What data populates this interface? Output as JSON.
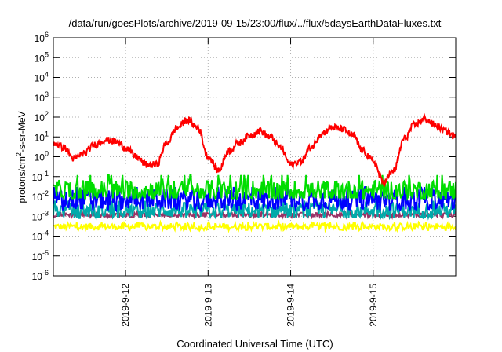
{
  "chart_data": {
    "type": "line",
    "title": "/data/run/goesPlots/archive/2019-09-15/23:00/flux/../flux/5daysEarthDataFluxes.txt",
    "xlabel": "Coordinated Universal Time (UTC)",
    "ylabel": "protons/cm2-s-sr-MeV",
    "ylabel_parts": {
      "pre": "protons/cm",
      "sup": "2",
      "post": "-s-sr-MeV"
    },
    "yscale": "log",
    "xlim": [
      "2019-09-11T03:00",
      "2019-09-16T00:00"
    ],
    "ylim": [
      1e-06,
      1000000.0
    ],
    "x_ticks": [
      "2019-9-12",
      "2019-9-13",
      "2019-9-14",
      "2019-9-15"
    ],
    "y_tick_exponents": [
      -6,
      -5,
      -4,
      -3,
      -2,
      -1,
      0,
      1,
      2,
      3,
      4,
      5,
      6
    ],
    "grid": true,
    "series": [
      {
        "color": "#ff0000",
        "x": [
          "2019-09-11T03:00",
          "2019-09-11T06:00",
          "2019-09-11T09:00",
          "2019-09-11T12:00",
          "2019-09-11T15:00",
          "2019-09-11T18:00",
          "2019-09-11T21:00",
          "2019-09-12T00:00",
          "2019-09-12T03:00",
          "2019-09-12T06:00",
          "2019-09-12T09:00",
          "2019-09-12T12:00",
          "2019-09-12T15:00",
          "2019-09-12T18:00",
          "2019-09-12T21:00",
          "2019-09-13T00:00",
          "2019-09-13T03:00",
          "2019-09-13T06:00",
          "2019-09-13T09:00",
          "2019-09-13T12:00",
          "2019-09-13T15:00",
          "2019-09-13T18:00",
          "2019-09-13T21:00",
          "2019-09-14T00:00",
          "2019-09-14T03:00",
          "2019-09-14T06:00",
          "2019-09-14T09:00",
          "2019-09-14T12:00",
          "2019-09-14T15:00",
          "2019-09-14T18:00",
          "2019-09-14T21:00",
          "2019-09-15T00:00",
          "2019-09-15T03:00",
          "2019-09-15T06:00",
          "2019-09-15T09:00",
          "2019-09-15T12:00",
          "2019-09-15T15:00",
          "2019-09-15T18:00",
          "2019-09-15T21:00",
          "2019-09-16T00:00"
        ],
        "y": [
          5,
          3,
          0.8,
          1.5,
          4,
          7,
          6,
          3,
          1,
          0.4,
          0.4,
          5,
          30,
          70,
          30,
          1,
          0.2,
          2,
          5,
          12,
          20,
          10,
          3,
          0.4,
          0.6,
          3,
          15,
          30,
          25,
          12,
          2,
          0.6,
          0.05,
          0.2,
          8,
          40,
          80,
          40,
          20,
          10
        ]
      },
      {
        "color": "#00dd00",
        "x": [
          "2019-09-11T03:00",
          "2019-09-16T00:00"
        ],
        "y": [
          0.02,
          0.02
        ],
        "y_range": [
          0.008,
          0.12
        ]
      },
      {
        "color": "#0000ff",
        "x": [
          "2019-09-11T03:00",
          "2019-09-16T00:00"
        ],
        "y": [
          0.007,
          0.007
        ],
        "y_range": [
          0.002,
          0.03
        ]
      },
      {
        "color": "#00aaaa",
        "x": [
          "2019-09-11T03:00",
          "2019-09-16T00:00"
        ],
        "y": [
          0.002,
          0.002
        ],
        "y_range": [
          0.0008,
          0.006
        ]
      },
      {
        "color": "#993366",
        "x": [
          "2019-09-11T03:00",
          "2019-09-16T00:00"
        ],
        "y": [
          0.0012,
          0.0012
        ],
        "y_range": [
          0.0009,
          0.0016
        ]
      },
      {
        "color": "#ffff00",
        "x": [
          "2019-09-11T03:00",
          "2019-09-16T00:00"
        ],
        "y": [
          0.0003,
          0.0003
        ],
        "y_range": [
          0.0002,
          0.0005
        ]
      }
    ]
  }
}
